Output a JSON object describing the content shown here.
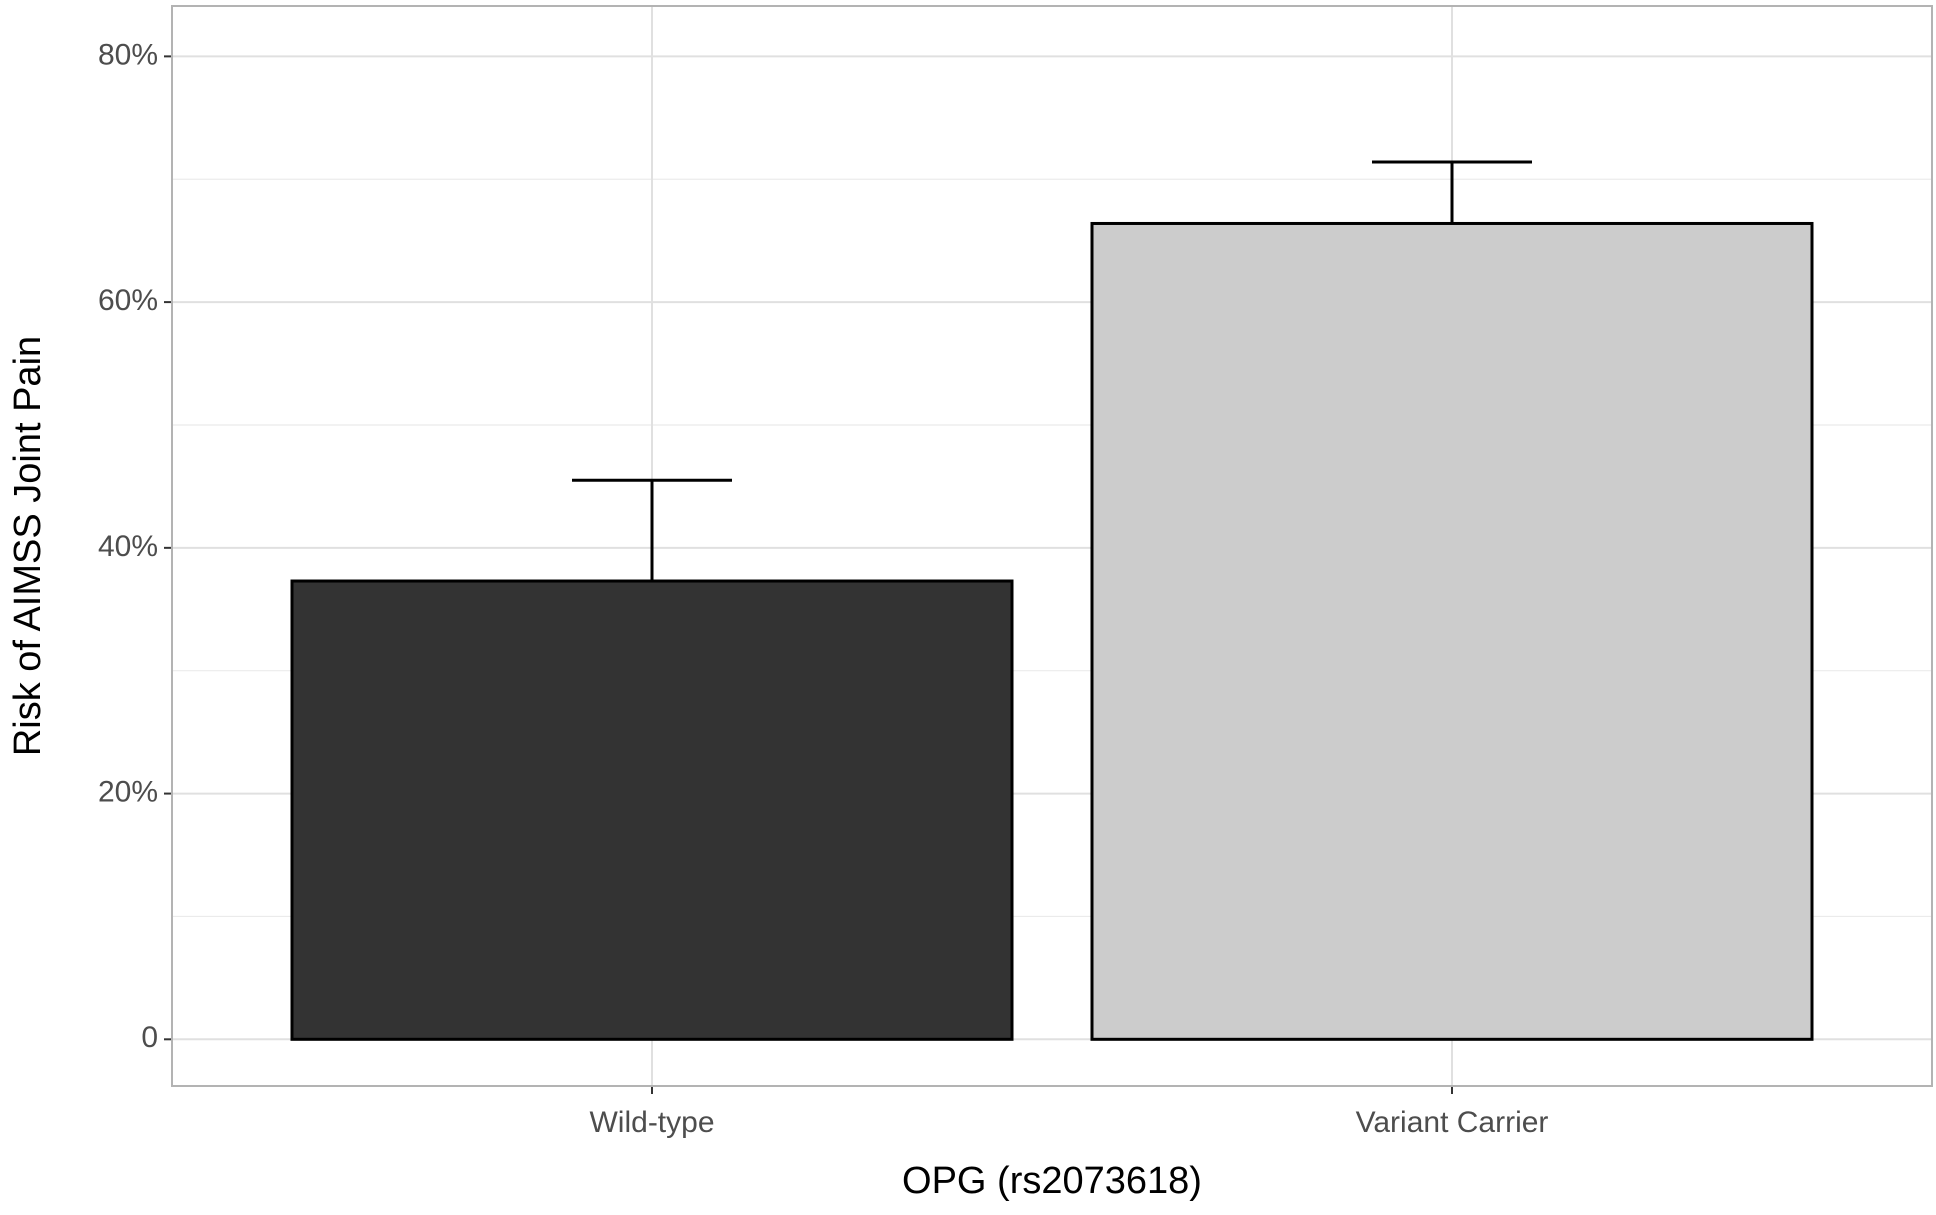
{
  "chart_data": {
    "type": "bar",
    "x_label": "OPG (rs2073618)",
    "y_label": "Risk of AIMSS Joint Pain",
    "categories": [
      "Wild-type",
      "Variant Carrier"
    ],
    "values": [
      37.3,
      66.4
    ],
    "errors": [
      8.2,
      5.0
    ],
    "colors": [
      "#333333",
      "#cccccc"
    ],
    "ylim": [
      -3.8,
      84.1
    ],
    "yticks": [
      0,
      {
        "value": 20,
        "label": "20%"
      },
      {
        "value": 40,
        "label": "40%"
      },
      {
        "value": 60,
        "label": "60%"
      },
      {
        "value": 80,
        "label": "80%"
      }
    ],
    "minor_yticks": [
      10,
      30,
      50,
      70
    ],
    "grid": true
  }
}
